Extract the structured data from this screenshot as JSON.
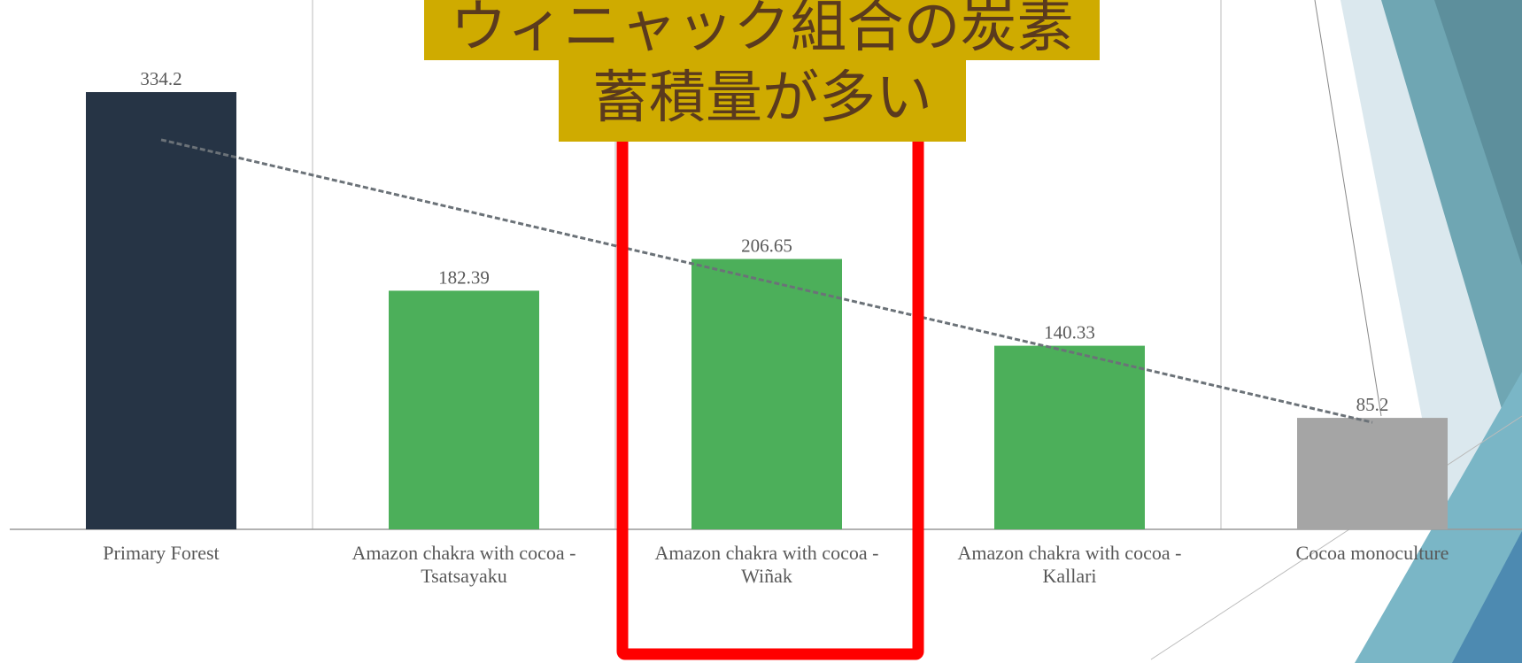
{
  "chart_data": {
    "type": "bar",
    "categories": [
      "Primary Forest",
      "Amazon chakra with cocoa - Tsatsayaku",
      "Amazon chakra with cocoa - Wiñak",
      "Amazon chakra with cocoa - Kallari",
      "Cocoa monoculture"
    ],
    "values": [
      334.2,
      182.39,
      206.65,
      140.33,
      85.2
    ],
    "colors": [
      "#263445",
      "#4caf5a",
      "#4caf5a",
      "#4caf5a",
      "#a5a5a5"
    ],
    "trendline": "linear",
    "annotation": [
      "ウィニャック組合の炭素",
      "蓄積量が多い"
    ]
  }
}
